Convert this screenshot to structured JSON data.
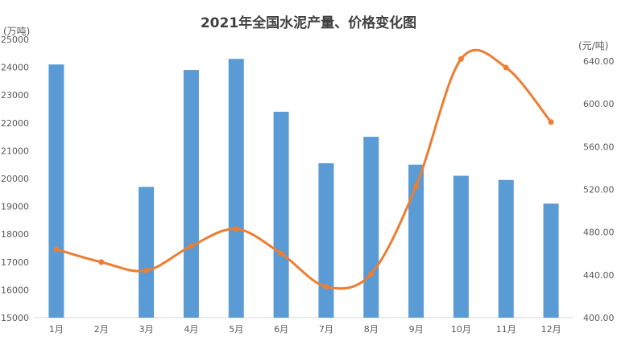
{
  "chart_data": {
    "type": "bar+line",
    "title": "2021年全国水泥产量、价格变化图",
    "categories": [
      "1月",
      "2月",
      "3月",
      "4月",
      "5月",
      "6月",
      "7月",
      "8月",
      "9月",
      "10月",
      "11月",
      "12月"
    ],
    "series": [
      {
        "type": "bar",
        "axis": "left",
        "color": "#5b9bd5",
        "values": [
          24100,
          null,
          19700,
          23900,
          24300,
          22400,
          20550,
          21500,
          20500,
          20100,
          19950,
          19100
        ]
      },
      {
        "type": "line",
        "axis": "right",
        "color": "#ed7d31",
        "values": [
          464,
          452,
          444,
          467,
          483,
          460,
          429,
          441,
          523,
          642,
          634,
          583
        ]
      }
    ],
    "left_axis": {
      "unit": "(万吨)",
      "ylim": [
        15000,
        25000
      ],
      "ticks": [
        15000,
        16000,
        17000,
        18000,
        19000,
        20000,
        21000,
        22000,
        23000,
        24000,
        25000
      ]
    },
    "right_axis": {
      "unit": "(元/吨)",
      "ylim": [
        400,
        640
      ],
      "ticks": [
        "400.00",
        "440.00",
        "480.00",
        "520.00",
        "560.00",
        "600.00",
        "640.00"
      ]
    },
    "grid": false
  }
}
